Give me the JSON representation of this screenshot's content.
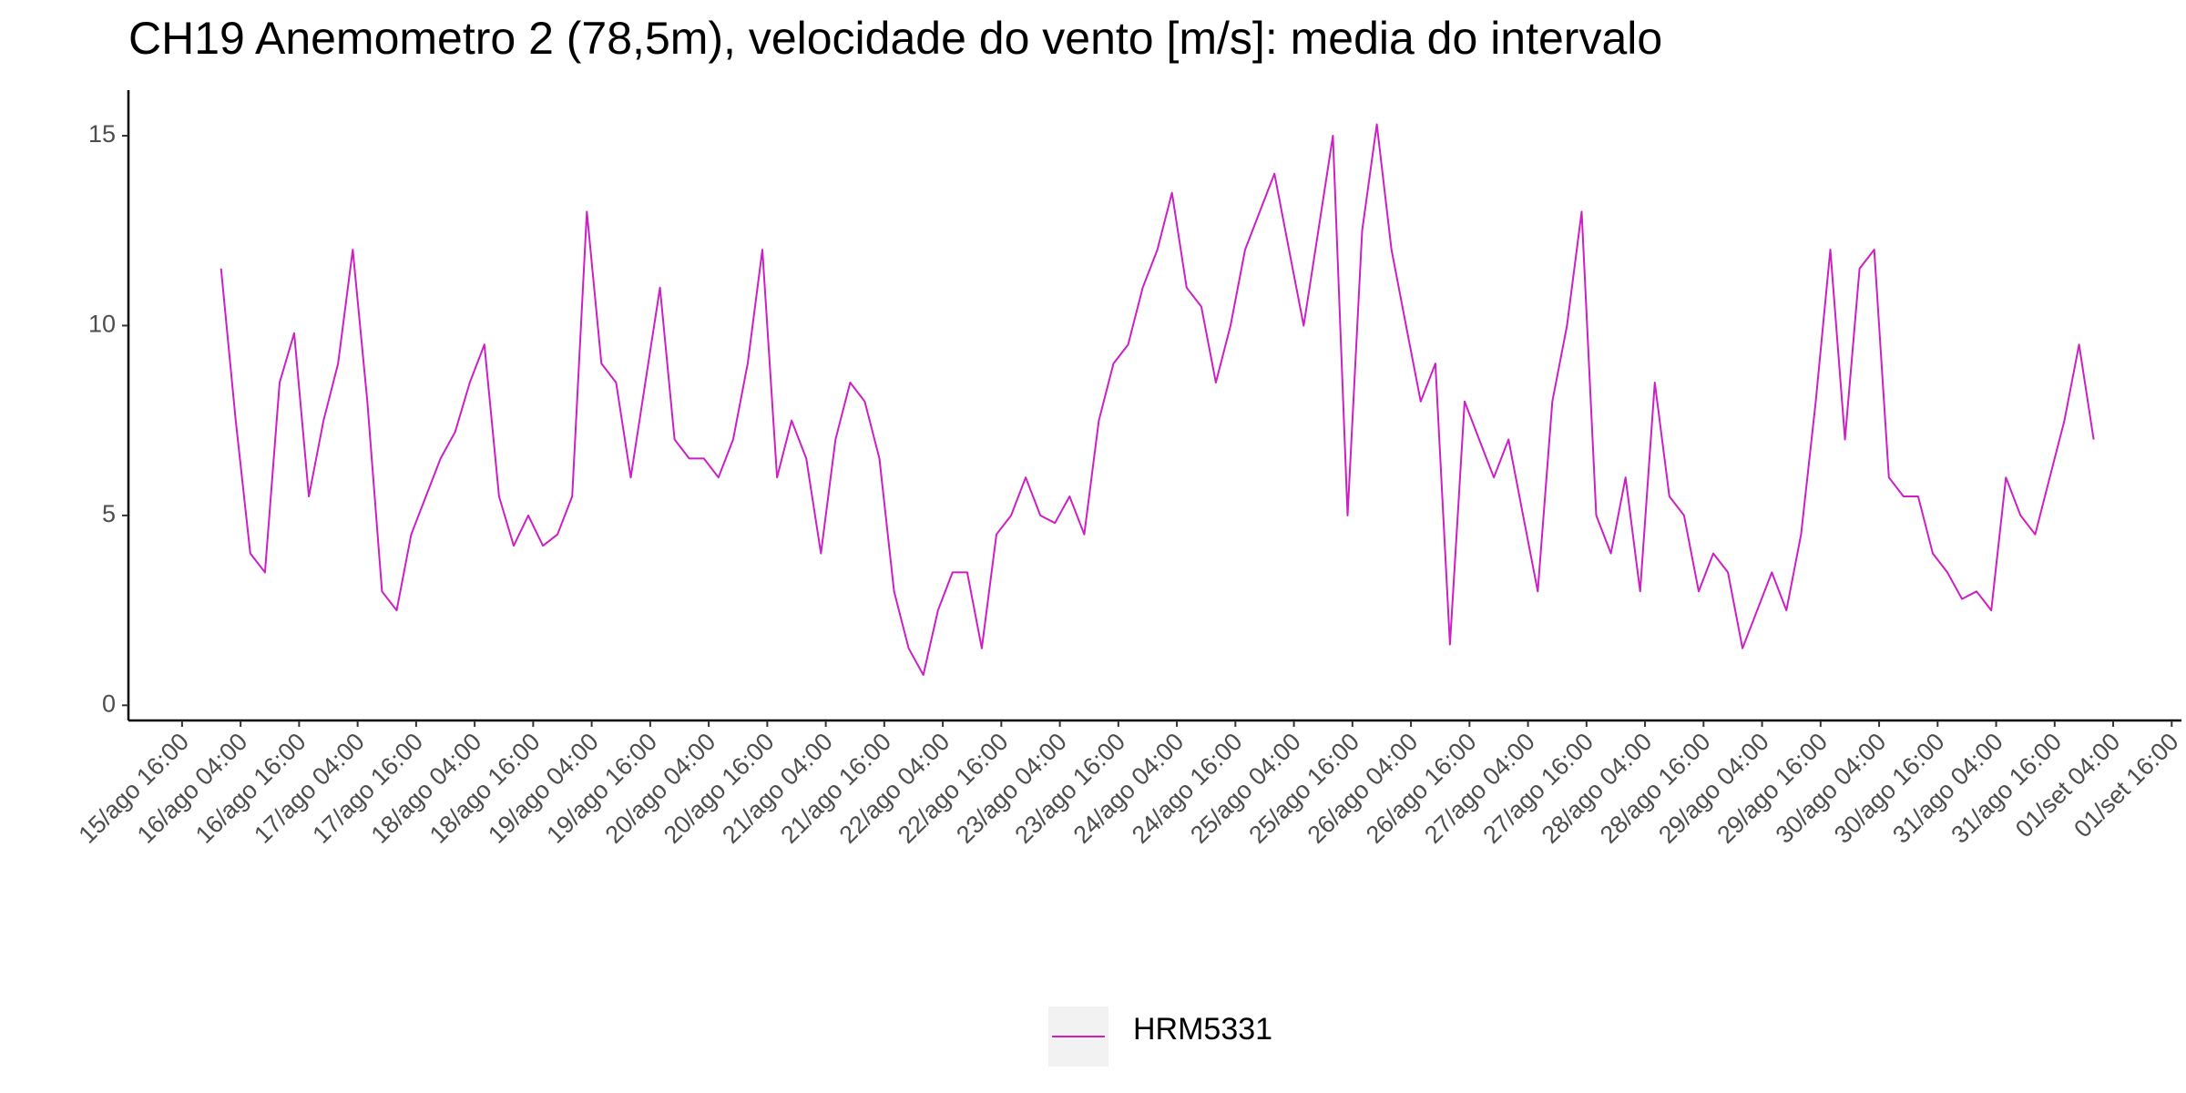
{
  "chart_data": {
    "type": "line",
    "title": "CH19 Anemometro 2 (78,5m), velocidade do vento [m/s]: media do intervalo",
    "x": [
      "16/ago 00:00",
      "16/ago 03:00",
      "16/ago 06:00",
      "16/ago 09:00",
      "16/ago 12:00",
      "16/ago 15:00",
      "16/ago 18:00",
      "16/ago 21:00",
      "17/ago 00:00",
      "17/ago 03:00",
      "17/ago 06:00",
      "17/ago 09:00",
      "17/ago 12:00",
      "17/ago 15:00",
      "17/ago 18:00",
      "17/ago 21:00",
      "18/ago 00:00",
      "18/ago 03:00",
      "18/ago 06:00",
      "18/ago 09:00",
      "18/ago 12:00",
      "18/ago 15:00",
      "18/ago 18:00",
      "18/ago 21:00",
      "19/ago 00:00",
      "19/ago 03:00",
      "19/ago 06:00",
      "19/ago 09:00",
      "19/ago 12:00",
      "19/ago 15:00",
      "19/ago 18:00",
      "19/ago 21:00",
      "20/ago 00:00",
      "20/ago 03:00",
      "20/ago 06:00",
      "20/ago 09:00",
      "20/ago 12:00",
      "20/ago 15:00",
      "20/ago 18:00",
      "20/ago 21:00",
      "21/ago 00:00",
      "21/ago 03:00",
      "21/ago 06:00",
      "21/ago 09:00",
      "21/ago 12:00",
      "21/ago 15:00",
      "21/ago 18:00",
      "21/ago 21:00",
      "22/ago 00:00",
      "22/ago 03:00",
      "22/ago 06:00",
      "22/ago 09:00",
      "22/ago 12:00",
      "22/ago 15:00",
      "22/ago 18:00",
      "22/ago 21:00",
      "23/ago 00:00",
      "23/ago 03:00",
      "23/ago 06:00",
      "23/ago 09:00",
      "23/ago 12:00",
      "23/ago 15:00",
      "23/ago 18:00",
      "23/ago 21:00",
      "24/ago 00:00",
      "24/ago 03:00",
      "24/ago 06:00",
      "24/ago 09:00",
      "24/ago 12:00",
      "24/ago 15:00",
      "24/ago 18:00",
      "24/ago 21:00",
      "25/ago 00:00",
      "25/ago 03:00",
      "25/ago 06:00",
      "25/ago 09:00",
      "25/ago 12:00",
      "25/ago 15:00",
      "25/ago 18:00",
      "25/ago 21:00",
      "26/ago 00:00",
      "26/ago 03:00",
      "26/ago 06:00",
      "26/ago 09:00",
      "26/ago 12:00",
      "26/ago 15:00",
      "26/ago 18:00",
      "26/ago 21:00",
      "27/ago 00:00",
      "27/ago 03:00",
      "27/ago 06:00",
      "27/ago 09:00",
      "27/ago 12:00",
      "27/ago 15:00",
      "27/ago 18:00",
      "27/ago 21:00",
      "28/ago 00:00",
      "28/ago 03:00",
      "28/ago 06:00",
      "28/ago 09:00",
      "28/ago 12:00",
      "28/ago 15:00",
      "28/ago 18:00",
      "28/ago 21:00",
      "29/ago 00:00",
      "29/ago 03:00",
      "29/ago 06:00",
      "29/ago 09:00",
      "29/ago 12:00",
      "29/ago 15:00",
      "29/ago 18:00",
      "29/ago 21:00",
      "30/ago 00:00",
      "30/ago 03:00",
      "30/ago 06:00",
      "30/ago 09:00",
      "30/ago 12:00",
      "30/ago 15:00",
      "30/ago 18:00",
      "30/ago 21:00",
      "31/ago 00:00",
      "31/ago 03:00",
      "31/ago 06:00",
      "31/ago 09:00",
      "31/ago 12:00",
      "31/ago 15:00",
      "31/ago 18:00",
      "31/ago 21:00",
      "01/set 00:00"
    ],
    "series": [
      {
        "name": "HRM5331",
        "color": "#cc1fc4",
        "values": [
          11.5,
          7.5,
          4,
          3.5,
          8.5,
          9.8,
          5.5,
          7.5,
          9,
          12,
          8,
          3,
          2.5,
          4.5,
          5.5,
          6.5,
          7.2,
          8.5,
          9.5,
          5.5,
          4.2,
          5,
          4.2,
          4.5,
          5.5,
          13,
          9,
          8.5,
          6,
          8.5,
          11,
          7,
          6.5,
          6.5,
          6,
          7,
          9,
          12,
          6,
          7.5,
          6.5,
          4,
          7,
          8.5,
          8,
          6.5,
          3,
          1.5,
          0.8,
          2.5,
          3.5,
          3.5,
          1.5,
          4.5,
          5,
          6,
          5,
          4.8,
          5.5,
          4.5,
          7.5,
          9,
          9.5,
          11,
          12,
          13.5,
          11,
          10.5,
          8.5,
          10,
          12,
          13,
          14,
          12,
          10,
          12.5,
          15,
          5,
          12.5,
          15.3,
          12,
          10,
          8,
          9,
          1.6,
          8,
          7,
          6,
          7,
          5,
          3,
          8,
          10,
          13,
          5,
          4,
          6,
          3,
          8.5,
          5.5,
          5,
          3,
          4,
          3.5,
          1.5,
          2.5,
          3.5,
          2.5,
          4.5,
          8,
          12,
          7,
          11.5,
          12,
          6,
          5.5,
          5.5,
          4,
          3.5,
          2.8,
          3,
          2.5,
          6,
          5,
          4.5,
          6,
          7.5,
          9.5,
          7
        ]
      }
    ],
    "xlim": [
      "15/ago 05:00",
      "01/set 18:00"
    ],
    "xticks": [
      "15/ago 16:00",
      "16/ago 04:00",
      "16/ago 16:00",
      "17/ago 04:00",
      "17/ago 16:00",
      "18/ago 04:00",
      "18/ago 16:00",
      "19/ago 04:00",
      "19/ago 16:00",
      "20/ago 04:00",
      "20/ago 16:00",
      "21/ago 04:00",
      "21/ago 16:00",
      "22/ago 04:00",
      "22/ago 16:00",
      "23/ago 04:00",
      "23/ago 16:00",
      "24/ago 04:00",
      "24/ago 16:00",
      "25/ago 04:00",
      "25/ago 16:00",
      "26/ago 04:00",
      "26/ago 16:00",
      "27/ago 04:00",
      "27/ago 16:00",
      "28/ago 04:00",
      "28/ago 16:00",
      "29/ago 04:00",
      "29/ago 16:00",
      "30/ago 04:00",
      "30/ago 16:00",
      "31/ago 04:00",
      "31/ago 16:00",
      "01/set 04:00",
      "01/set 16:00"
    ],
    "ylim": [
      -0.4,
      16.2
    ],
    "yticks": [
      0,
      5,
      10,
      15
    ],
    "grid": false,
    "legend": "bottom"
  }
}
